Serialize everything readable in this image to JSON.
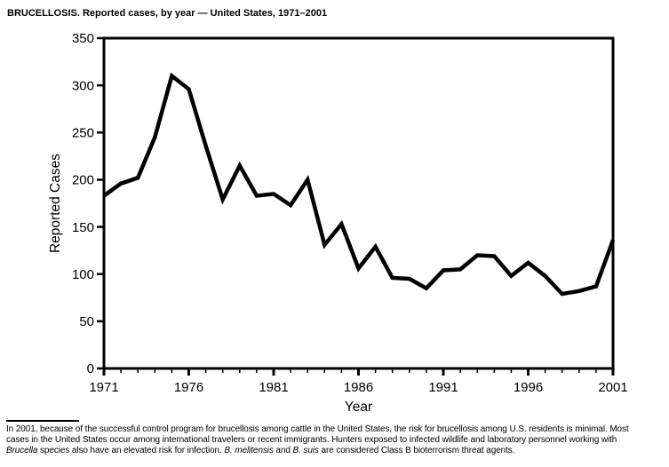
{
  "title": "BRUCELLOSIS. Reported cases, by year — United States, 1971–2001",
  "chart_data": {
    "type": "line",
    "title": "BRUCELLOSIS. Reported cases, by year — United States, 1971–2001",
    "xlabel": "Year",
    "ylabel": "Reported Cases",
    "xlim": [
      1971,
      2001
    ],
    "ylim": [
      0,
      350
    ],
    "y_tick_interval": 50,
    "y_ticks": [
      0,
      50,
      100,
      150,
      200,
      250,
      300,
      350
    ],
    "x_minor_tick_interval_years": 1,
    "x_labeled_ticks": [
      1971,
      1976,
      1981,
      1986,
      1991,
      1996,
      2001
    ],
    "grid": false,
    "frame": "closed-box",
    "legend": "none",
    "line_color": "#000000",
    "background_color": "#ffffff",
    "series": [
      {
        "name": "Reported cases",
        "x": [
          1971,
          1972,
          1973,
          1974,
          1975,
          1976,
          1977,
          1978,
          1979,
          1980,
          1981,
          1982,
          1983,
          1984,
          1985,
          1986,
          1987,
          1988,
          1989,
          1990,
          1991,
          1992,
          1993,
          1994,
          1995,
          1996,
          1997,
          1998,
          1999,
          2000,
          2001
        ],
        "values": [
          183,
          196,
          202,
          245,
          310,
          296,
          236,
          179,
          215,
          183,
          185,
          173,
          200,
          131,
          153,
          106,
          129,
          96,
          95,
          85,
          104,
          105,
          120,
          119,
          98,
          112,
          98,
          79,
          82,
          87,
          136
        ]
      }
    ]
  },
  "footnote": {
    "lines": [
      [
        {
          "t": "In 2001, because of the successful control program for brucellosis among cattle in the United States, the risk for brucellosis among U.S. residents is minimal. Most",
          "i": false
        }
      ],
      [
        {
          "t": "cases in the United States occur among international travelers or recent immigrants. Hunters exposed to infected wildlife and laboratory personnel working with",
          "i": false
        }
      ],
      [
        {
          "t": "Brucella",
          "i": true
        },
        {
          "t": " species also have an elevated risk for infection. ",
          "i": false
        },
        {
          "t": "B. melitensis",
          "i": true
        },
        {
          "t": " and ",
          "i": false
        },
        {
          "t": "B. suis",
          "i": true
        },
        {
          "t": " are considered Class B bioterrorism threat agents.",
          "i": false
        }
      ]
    ]
  },
  "colors": {
    "line": "#000000",
    "text": "#000000",
    "background": "#ffffff"
  }
}
